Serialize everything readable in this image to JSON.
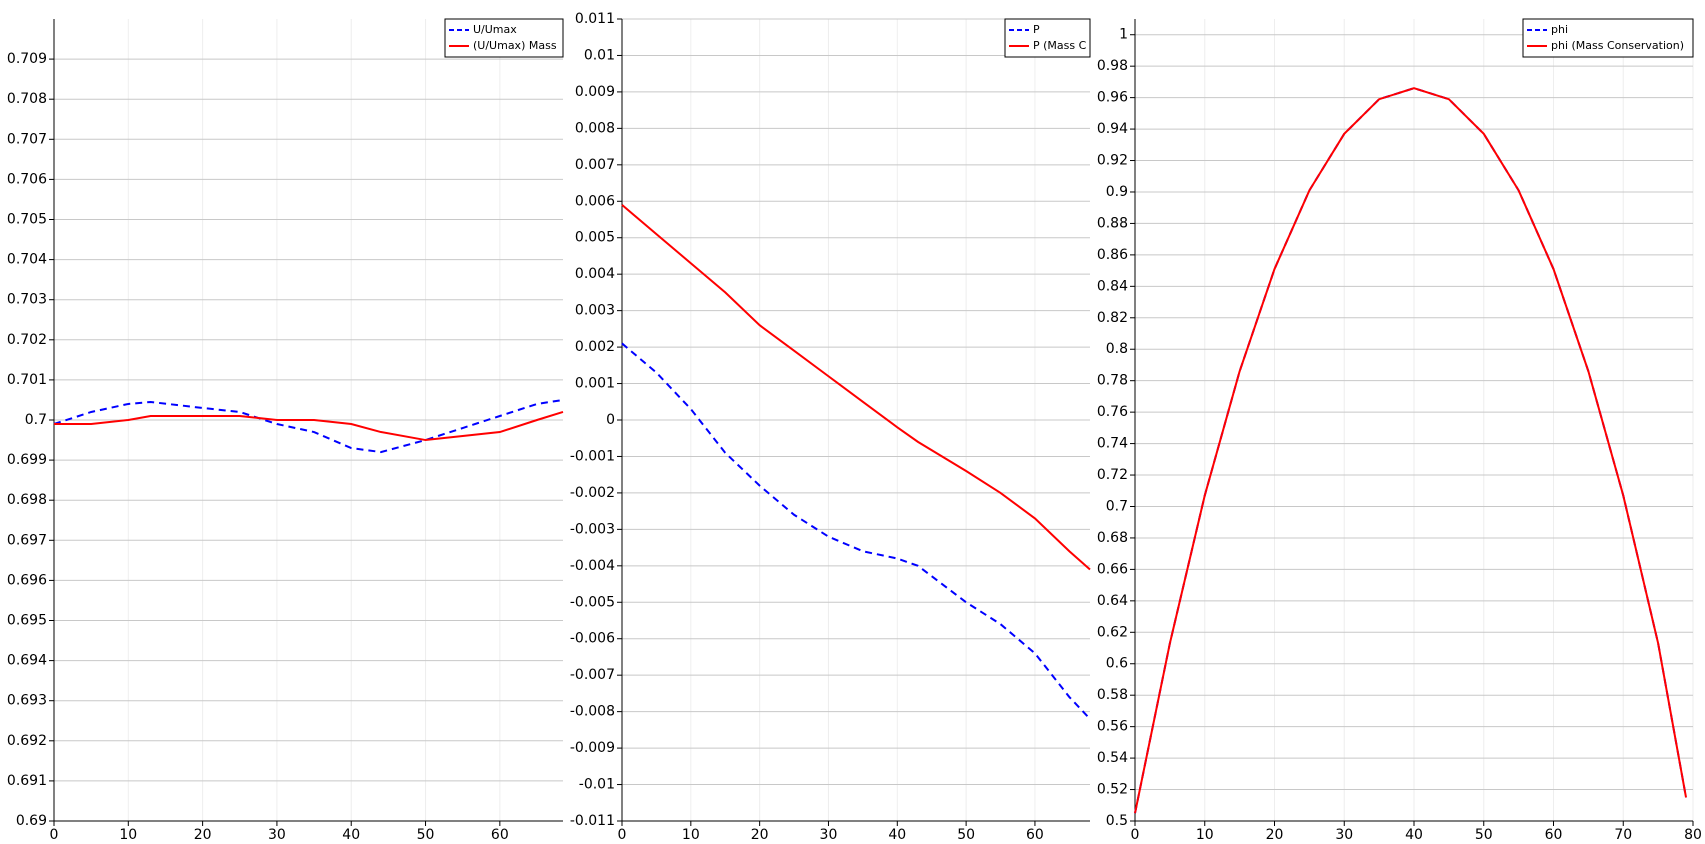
{
  "chart_data": [
    {
      "type": "line",
      "grid": true,
      "legend": "top-right",
      "x": [
        0,
        5,
        10,
        13,
        20,
        25,
        30,
        35,
        40,
        44,
        50,
        55,
        60,
        65,
        68.5
      ],
      "xlim": [
        0,
        68.5
      ],
      "xticks": [
        0,
        10,
        20,
        30,
        40,
        50,
        60
      ],
      "ylim": [
        0.69,
        0.71
      ],
      "yticks": [
        0.69,
        0.691,
        0.692,
        0.693,
        0.694,
        0.695,
        0.696,
        0.697,
        0.698,
        0.699,
        0.7,
        0.701,
        0.702,
        0.703,
        0.704,
        0.705,
        0.706,
        0.707,
        0.708,
        0.709
      ],
      "series": [
        {
          "name": "U/Umax",
          "color": "#0000ff",
          "dash": true,
          "values": [
            0.6999,
            0.7002,
            0.7004,
            0.70045,
            0.7003,
            0.7002,
            0.6999,
            0.6997,
            0.6993,
            0.6992,
            0.6995,
            0.6998,
            0.7001,
            0.7004,
            0.7005
          ]
        },
        {
          "name": "(U/Umax) Mass",
          "color": "#ff0000",
          "dash": false,
          "values": [
            0.6999,
            0.6999,
            0.7,
            0.7001,
            0.7001,
            0.7001,
            0.7,
            0.7,
            0.6999,
            0.6997,
            0.6995,
            0.6996,
            0.6997,
            0.7,
            0.7002
          ]
        }
      ]
    },
    {
      "type": "line",
      "grid": true,
      "legend": "top-right",
      "x": [
        0,
        5,
        10,
        15,
        20,
        25,
        30,
        35,
        40,
        43,
        50,
        55,
        60,
        65,
        68
      ],
      "xlim": [
        0,
        68
      ],
      "xticks": [
        0,
        10,
        20,
        30,
        40,
        50,
        60
      ],
      "ylim": [
        -0.011,
        0.011
      ],
      "yticks": [
        -0.011,
        -0.01,
        -0.009,
        -0.008,
        -0.007,
        -0.006,
        -0.005,
        -0.004,
        -0.003,
        -0.002,
        -0.001,
        0,
        0.001,
        0.002,
        0.003,
        0.004,
        0.005,
        0.006,
        0.007,
        0.008,
        0.009,
        0.01,
        0.011
      ],
      "series": [
        {
          "name": "P",
          "color": "#0000ff",
          "dash": true,
          "values": [
            0.0021,
            0.0013,
            0.0003,
            -0.0009,
            -0.0018,
            -0.0026,
            -0.0032,
            -0.0036,
            -0.0038,
            -0.004,
            -0.005,
            -0.0056,
            -0.0064,
            -0.0076,
            -0.0082
          ]
        },
        {
          "name": "P (Mass C",
          "color": "#ff0000",
          "dash": false,
          "values": [
            0.0059,
            0.0051,
            0.0043,
            0.0035,
            0.0026,
            0.0019,
            0.0012,
            0.0005,
            -0.0002,
            -0.0006,
            -0.0014,
            -0.002,
            -0.0027,
            -0.0036,
            -0.0041
          ]
        }
      ]
    },
    {
      "type": "line",
      "grid": true,
      "legend": "top-right",
      "x": [
        0,
        5,
        10,
        15,
        20,
        25,
        30,
        35,
        40,
        45,
        50,
        55,
        60,
        65,
        70,
        75,
        79
      ],
      "xlim": [
        0,
        80
      ],
      "xticks": [
        0,
        10,
        20,
        30,
        40,
        50,
        60,
        70,
        80
      ],
      "ylim": [
        0.5,
        1.01
      ],
      "yticks": [
        0.5,
        0.52,
        0.54,
        0.56,
        0.58,
        0.6,
        0.62,
        0.64,
        0.66,
        0.68,
        0.7,
        0.72,
        0.74,
        0.76,
        0.78,
        0.8,
        0.82,
        0.84,
        0.86,
        0.88,
        0.9,
        0.92,
        0.94,
        0.96,
        0.98,
        1
      ],
      "series": [
        {
          "name": "phi",
          "color": "#0000ff",
          "dash": true,
          "values": [
            0.505,
            0.613,
            0.707,
            0.786,
            0.851,
            0.901,
            0.937,
            0.959,
            0.966,
            0.959,
            0.937,
            0.901,
            0.851,
            0.786,
            0.707,
            0.613,
            0.515
          ]
        },
        {
          "name": "phi (Mass Conservation)",
          "color": "#ff0000",
          "dash": false,
          "values": [
            0.505,
            0.613,
            0.707,
            0.786,
            0.851,
            0.901,
            0.937,
            0.959,
            0.966,
            0.959,
            0.937,
            0.901,
            0.851,
            0.786,
            0.707,
            0.613,
            0.515
          ]
        }
      ]
    }
  ]
}
